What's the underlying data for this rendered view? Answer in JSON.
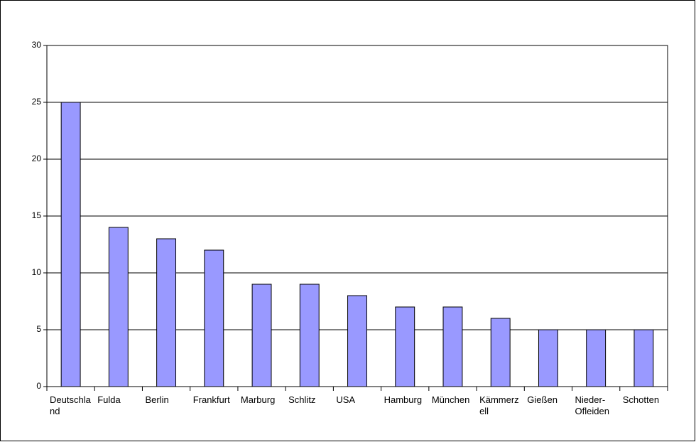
{
  "chart_data": {
    "type": "bar",
    "categories": [
      "Deutschland",
      "Fulda",
      "Berlin",
      "Frankfurt",
      "Marburg",
      "Schlitz",
      "USA",
      "Hamburg",
      "München",
      "Kämmerzell",
      "Gießen",
      "Nieder-Ofleiden",
      "Schotten"
    ],
    "values": [
      25,
      14,
      13,
      12,
      9,
      9,
      8,
      7,
      7,
      6,
      5,
      5,
      5
    ],
    "color": "#9999ff",
    "ylim": [
      0,
      30
    ],
    "yticks": [
      0,
      5,
      10,
      15,
      20,
      25,
      30
    ],
    "grid": true
  }
}
